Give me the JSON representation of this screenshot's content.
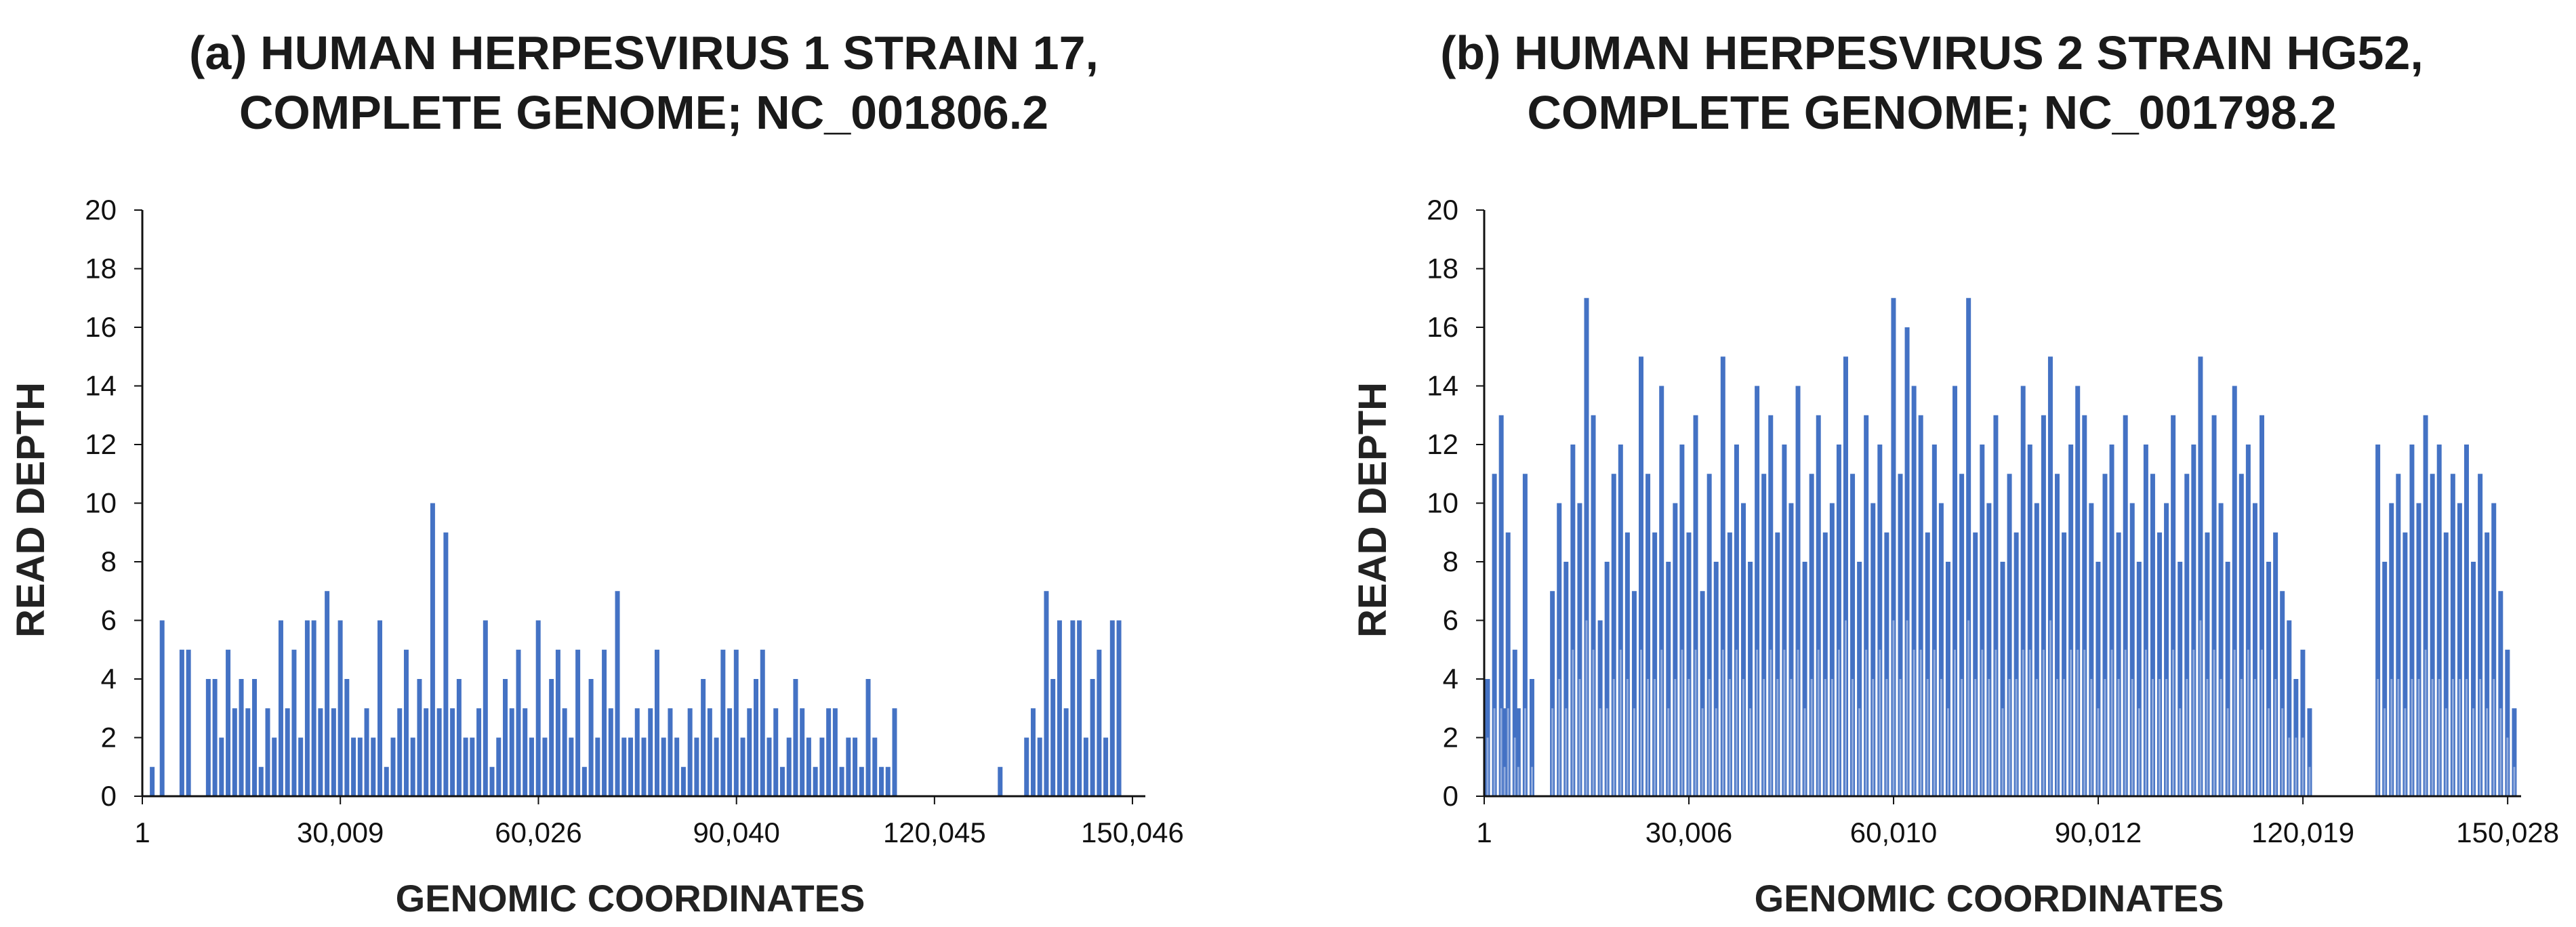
{
  "chart_data": [
    {
      "id": "a",
      "type": "bar",
      "title_line1": "(a) HUMAN HERPESVIRUS 1 STRAIN 17,",
      "title_line2": "COMPLETE GENOME; NC_001806.2",
      "xlabel": "GENOMIC COORDINATES",
      "ylabel": "READ DEPTH",
      "xlim": [
        1,
        152000
      ],
      "ylim": [
        0,
        20
      ],
      "yticks": [
        0,
        2,
        4,
        6,
        8,
        10,
        12,
        14,
        16,
        18,
        20
      ],
      "xticks": [
        {
          "value": 1,
          "label": "1"
        },
        {
          "value": 30009,
          "label": "30,009"
        },
        {
          "value": 60026,
          "label": "60,026"
        },
        {
          "value": 90040,
          "label": "90,040"
        },
        {
          "value": 120045,
          "label": "120,045"
        },
        {
          "value": 150046,
          "label": "150,046"
        }
      ],
      "color": "#4472C4",
      "series_note": "Read depth per genomic position (approximate, read from plot)",
      "x": [
        1500,
        3000,
        4500,
        6000,
        7000,
        10000,
        11000,
        12000,
        13000,
        14000,
        15000,
        16000,
        17000,
        18000,
        19000,
        20000,
        21000,
        22000,
        23000,
        24000,
        25000,
        26000,
        27000,
        28000,
        29000,
        30000,
        31000,
        32000,
        33000,
        34000,
        35000,
        36000,
        37000,
        38000,
        39000,
        40000,
        41000,
        42000,
        43000,
        44000,
        45000,
        46000,
        47000,
        48000,
        49000,
        50000,
        51000,
        52000,
        53000,
        54000,
        55000,
        56000,
        57000,
        58000,
        59000,
        60000,
        61000,
        62000,
        63000,
        64000,
        65000,
        66000,
        67000,
        68000,
        69000,
        70000,
        71000,
        72000,
        73000,
        74000,
        75000,
        76000,
        77000,
        78000,
        79000,
        80000,
        81000,
        82000,
        83000,
        84000,
        85000,
        86000,
        87000,
        88000,
        89000,
        90000,
        91000,
        92000,
        93000,
        94000,
        95000,
        96000,
        97000,
        98000,
        99000,
        100000,
        101000,
        102000,
        103000,
        104000,
        105000,
        106000,
        107000,
        108000,
        109000,
        110000,
        111000,
        112000,
        113000,
        114000,
        115000,
        116000,
        117000,
        118000,
        130000,
        134000,
        135000,
        136000,
        137000,
        138000,
        139000,
        140000,
        141000,
        142000,
        143000,
        144000,
        145000,
        146000,
        147000,
        148000
      ],
      "values": [
        1,
        6,
        0,
        5,
        5,
        4,
        4,
        2,
        5,
        3,
        4,
        3,
        4,
        1,
        3,
        2,
        6,
        3,
        5,
        2,
        6,
        6,
        3,
        7,
        3,
        6,
        4,
        2,
        2,
        3,
        2,
        6,
        1,
        2,
        3,
        5,
        2,
        4,
        3,
        10,
        3,
        9,
        3,
        4,
        2,
        2,
        3,
        6,
        1,
        2,
        4,
        3,
        5,
        3,
        2,
        6,
        2,
        4,
        5,
        3,
        2,
        5,
        1,
        4,
        2,
        5,
        3,
        7,
        2,
        2,
        3,
        2,
        3,
        5,
        2,
        3,
        2,
        1,
        3,
        2,
        4,
        3,
        2,
        5,
        3,
        5,
        2,
        3,
        4,
        5,
        2,
        3,
        1,
        2,
        4,
        3,
        2,
        1,
        2,
        3,
        3,
        1,
        2,
        2,
        1,
        4,
        2,
        1,
        1,
        3,
        0,
        0,
        0,
        0,
        1,
        2,
        3,
        2,
        7,
        4,
        6,
        3,
        6,
        6,
        2,
        4,
        5,
        2,
        6,
        6
      ],
      "fill_values": [
        0,
        0,
        0,
        0,
        0,
        1,
        1,
        1,
        2,
        1,
        1,
        1,
        2,
        1,
        1,
        1,
        2,
        1,
        2,
        1,
        2,
        2,
        1,
        2,
        1,
        2,
        1,
        1,
        1,
        1,
        1,
        2,
        1,
        1,
        1,
        2,
        1,
        1,
        1,
        3,
        1,
        2,
        1,
        1,
        1,
        1,
        1,
        2,
        1,
        1,
        1,
        1,
        2,
        1,
        1,
        2,
        1,
        1,
        2,
        1,
        1,
        2,
        1,
        1,
        1,
        2,
        1,
        2,
        1,
        1,
        1,
        1,
        1,
        2,
        1,
        1,
        1,
        1,
        1,
        1,
        1,
        1,
        1,
        2,
        1,
        2,
        1,
        1,
        1,
        2,
        1,
        1,
        1,
        1,
        1,
        1,
        1,
        1,
        1,
        1,
        1,
        1,
        1,
        1,
        1,
        1,
        1,
        1,
        1,
        1,
        0,
        0,
        0,
        0,
        0,
        1,
        1,
        1,
        2,
        1,
        2,
        1,
        2,
        2,
        1,
        1,
        2,
        1,
        2,
        2
      ]
    },
    {
      "id": "b",
      "type": "bar",
      "title_line1": "(b) HUMAN HERPESVIRUS 2 STRAIN HG52,",
      "title_line2": "COMPLETE GENOME; NC_001798.2",
      "xlabel": "GENOMIC COORDINATES",
      "ylabel": "READ DEPTH",
      "xlim": [
        1,
        152000
      ],
      "ylim": [
        0,
        20
      ],
      "yticks": [
        0,
        2,
        4,
        6,
        8,
        10,
        12,
        14,
        16,
        18,
        20
      ],
      "xticks": [
        {
          "value": 1,
          "label": "1"
        },
        {
          "value": 30006,
          "label": "30,006"
        },
        {
          "value": 60010,
          "label": "60,010"
        },
        {
          "value": 90012,
          "label": "90,012"
        },
        {
          "value": 120019,
          "label": "120,019"
        },
        {
          "value": 150028,
          "label": "150,028"
        }
      ],
      "color": "#4472C4",
      "series_note": "Read depth per genomic position (approximate, read from plot)",
      "x": [
        500,
        1500,
        2500,
        3000,
        3500,
        4500,
        5000,
        6000,
        7000,
        10000,
        11000,
        12000,
        13000,
        14000,
        15000,
        16000,
        17000,
        18000,
        19000,
        20000,
        21000,
        22000,
        23000,
        24000,
        25000,
        26000,
        27000,
        28000,
        29000,
        30000,
        31000,
        32000,
        33000,
        34000,
        35000,
        36000,
        37000,
        38000,
        39000,
        40000,
        41000,
        42000,
        43000,
        44000,
        45000,
        46000,
        47000,
        48000,
        49000,
        50000,
        51000,
        52000,
        53000,
        54000,
        55000,
        56000,
        57000,
        58000,
        59000,
        60000,
        61000,
        62000,
        63000,
        64000,
        65000,
        66000,
        67000,
        68000,
        69000,
        70000,
        71000,
        72000,
        73000,
        74000,
        75000,
        76000,
        77000,
        78000,
        79000,
        80000,
        81000,
        82000,
        83000,
        84000,
        85000,
        86000,
        87000,
        88000,
        89000,
        90000,
        91000,
        92000,
        93000,
        94000,
        95000,
        96000,
        97000,
        98000,
        99000,
        100000,
        101000,
        102000,
        103000,
        104000,
        105000,
        106000,
        107000,
        108000,
        109000,
        110000,
        111000,
        112000,
        113000,
        114000,
        115000,
        116000,
        117000,
        118000,
        119000,
        120000,
        121000,
        131000,
        132000,
        133000,
        134000,
        135000,
        136000,
        137000,
        138000,
        139000,
        140000,
        141000,
        142000,
        143000,
        144000,
        145000,
        146000,
        147000,
        148000,
        149000,
        150000,
        151000
      ],
      "values": [
        4,
        11,
        13,
        3,
        9,
        5,
        3,
        11,
        4,
        7,
        10,
        8,
        12,
        10,
        17,
        13,
        6,
        8,
        11,
        12,
        9,
        7,
        15,
        11,
        9,
        14,
        8,
        10,
        12,
        9,
        13,
        7,
        11,
        8,
        15,
        9,
        12,
        10,
        8,
        14,
        11,
        13,
        9,
        12,
        10,
        14,
        8,
        11,
        13,
        9,
        10,
        12,
        15,
        11,
        8,
        13,
        10,
        12,
        9,
        17,
        11,
        16,
        14,
        13,
        9,
        12,
        10,
        8,
        14,
        11,
        17,
        9,
        12,
        10,
        13,
        8,
        11,
        9,
        14,
        12,
        10,
        13,
        15,
        11,
        9,
        12,
        14,
        13,
        10,
        8,
        11,
        12,
        9,
        13,
        10,
        8,
        12,
        11,
        9,
        10,
        13,
        8,
        11,
        12,
        15,
        9,
        13,
        10,
        8,
        14,
        11,
        12,
        10,
        13,
        8,
        9,
        7,
        6,
        4,
        5,
        3,
        12,
        8,
        10,
        11,
        9,
        12,
        10,
        13,
        11,
        12,
        9,
        11,
        10,
        12,
        8,
        11,
        9,
        10,
        7,
        5,
        3
      ],
      "fill_values": [
        2,
        3,
        3,
        1,
        3,
        2,
        1,
        3,
        1,
        3,
        4,
        3,
        5,
        4,
        6,
        5,
        3,
        3,
        4,
        5,
        4,
        3,
        5,
        4,
        4,
        5,
        3,
        4,
        5,
        4,
        5,
        3,
        4,
        3,
        5,
        4,
        5,
        4,
        3,
        5,
        4,
        5,
        4,
        5,
        4,
        5,
        3,
        4,
        5,
        4,
        4,
        5,
        6,
        4,
        3,
        5,
        4,
        5,
        4,
        6,
        4,
        6,
        5,
        5,
        4,
        5,
        4,
        3,
        5,
        4,
        6,
        4,
        5,
        4,
        5,
        3,
        4,
        4,
        5,
        5,
        4,
        5,
        6,
        4,
        4,
        5,
        5,
        5,
        4,
        3,
        4,
        5,
        4,
        5,
        4,
        3,
        5,
        4,
        4,
        4,
        5,
        3,
        4,
        5,
        6,
        4,
        5,
        4,
        3,
        5,
        4,
        5,
        4,
        5,
        3,
        4,
        3,
        2,
        2,
        2,
        1,
        4,
        3,
        4,
        4,
        3,
        4,
        4,
        5,
        4,
        4,
        3,
        4,
        4,
        4,
        3,
        4,
        3,
        4,
        3,
        2,
        1
      ]
    }
  ]
}
